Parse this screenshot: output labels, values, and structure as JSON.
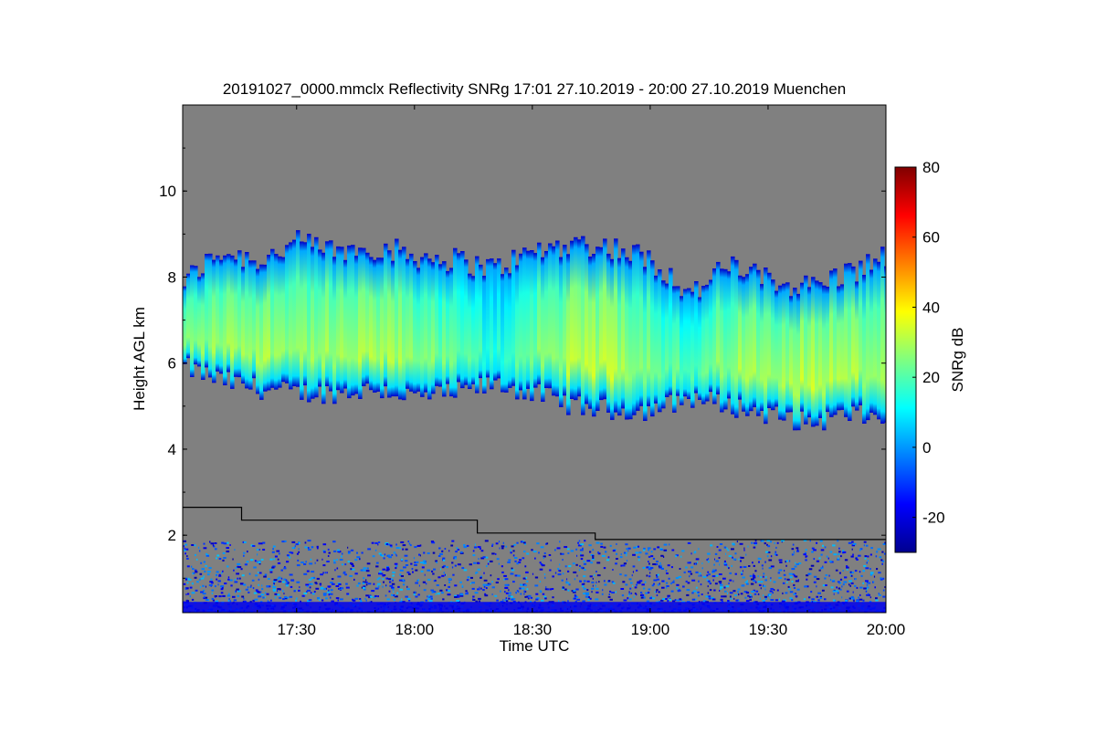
{
  "chart_data": {
    "type": "heatmap",
    "title": "20191027_0000.mmclx Reflectivity SNRg   17:01 27.10.2019 - 20:00 27.10.2019 Muenchen",
    "xlabel": "Time UTC",
    "ylabel": "Height AGL km",
    "xlim": [
      "17:01",
      "20:00"
    ],
    "ylim": [
      0.2,
      12.0
    ],
    "x_ticks": [
      "17:30",
      "18:00",
      "18:30",
      "19:00",
      "19:30",
      "20:00"
    ],
    "y_ticks": [
      2,
      4,
      6,
      8,
      10
    ],
    "colorbar": {
      "label": "SNRg dB",
      "range": [
        -30,
        80
      ],
      "ticks": [
        -20,
        0,
        20,
        40,
        60,
        80
      ],
      "colormap": "jet"
    },
    "background_color": "#808080",
    "cloud_layer": {
      "times": [
        "17:01",
        "17:10",
        "17:20",
        "17:30",
        "17:40",
        "17:50",
        "18:00",
        "18:10",
        "18:20",
        "18:30",
        "18:40",
        "18:50",
        "19:00",
        "19:10",
        "19:20",
        "19:30",
        "19:40",
        "19:50",
        "20:00"
      ],
      "base_km": [
        5.9,
        5.6,
        5.4,
        5.3,
        5.3,
        5.4,
        5.2,
        5.3,
        5.5,
        5.3,
        5.0,
        4.9,
        4.9,
        5.2,
        5.0,
        4.8,
        4.6,
        4.8,
        4.7
      ],
      "top_km": [
        7.9,
        8.6,
        8.4,
        8.8,
        8.6,
        8.7,
        8.5,
        8.4,
        8.2,
        8.6,
        8.8,
        8.7,
        8.4,
        7.6,
        8.3,
        7.9,
        7.8,
        8.1,
        8.5
      ],
      "peak_db": [
        25,
        28,
        30,
        28,
        27,
        30,
        27,
        22,
        15,
        25,
        30,
        32,
        26,
        18,
        28,
        30,
        32,
        30,
        28
      ]
    },
    "boundary_line": {
      "times": [
        "17:01",
        "17:16",
        "17:16",
        "18:16",
        "18:16",
        "18:46",
        "18:46",
        "20:00"
      ],
      "height_km": [
        2.65,
        2.65,
        2.35,
        2.35,
        2.05,
        2.05,
        1.9,
        1.9
      ]
    }
  }
}
